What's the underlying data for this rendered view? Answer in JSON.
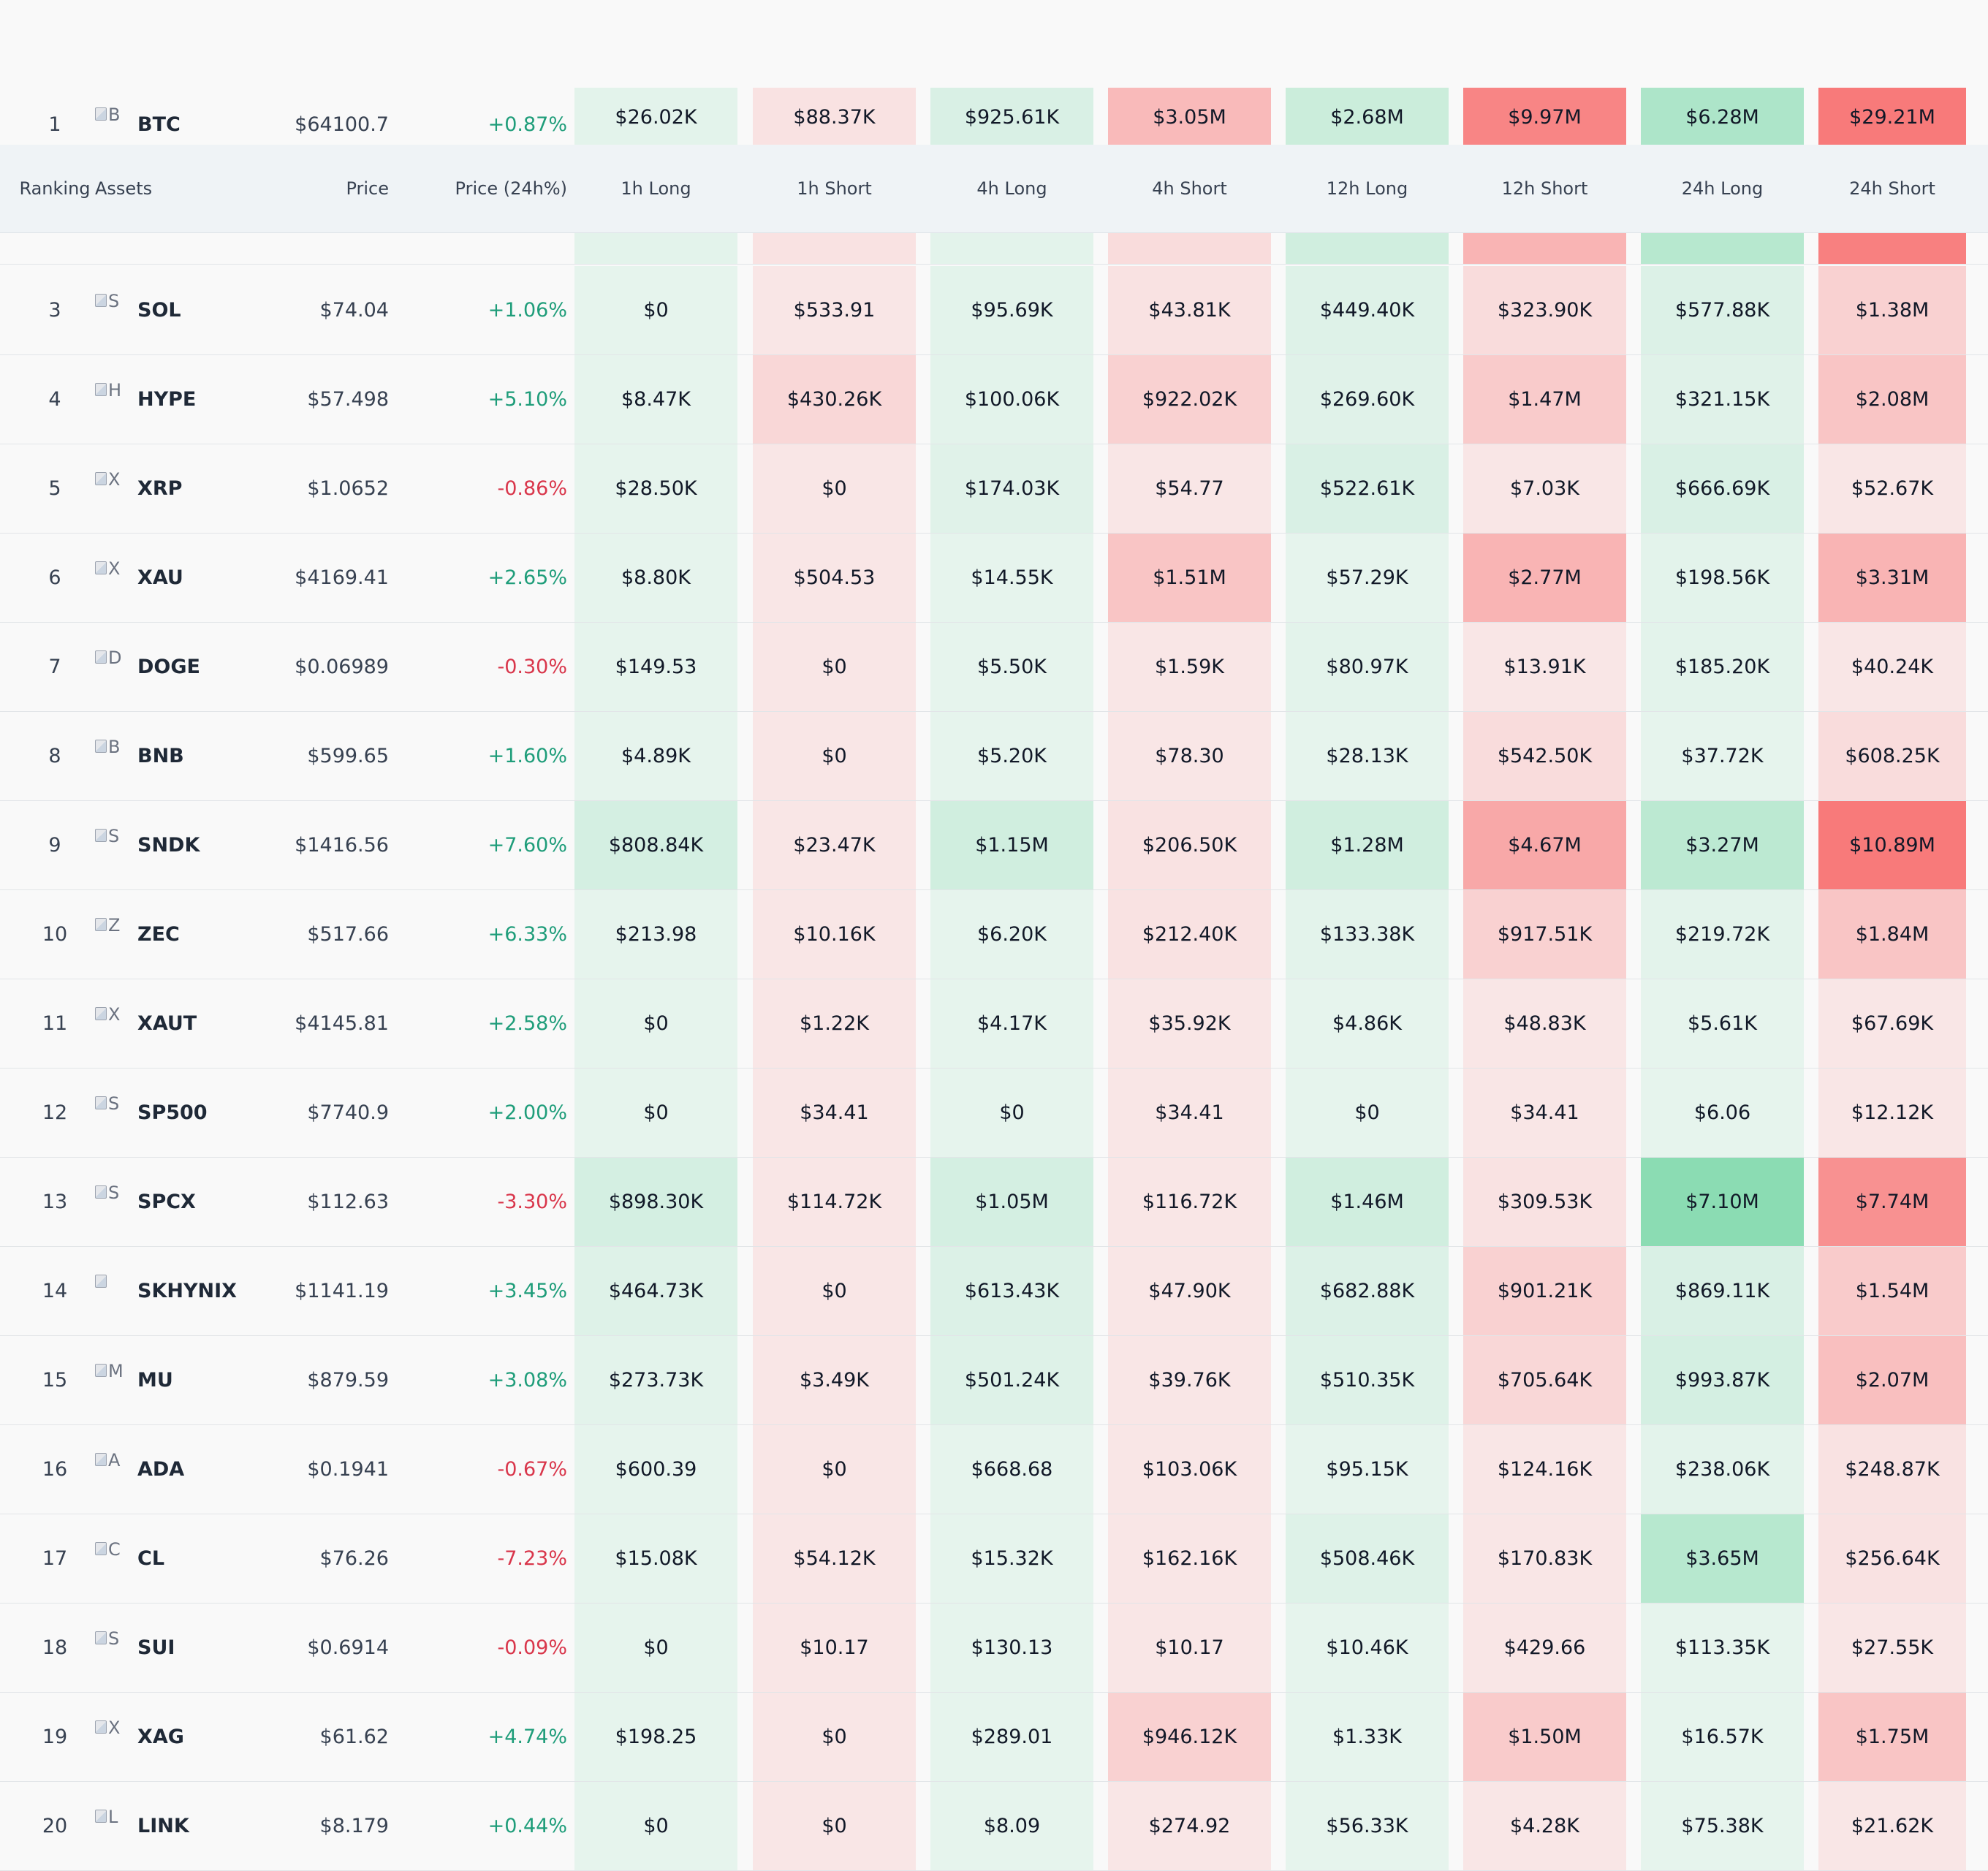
{
  "table": {
    "columns": [
      "Ranking",
      "Assets",
      "Price",
      "Price (24h%)",
      "1h Long",
      "1h Short",
      "4h Long",
      "4h Short",
      "12h Long",
      "12h Short",
      "24h Long",
      "24h Short"
    ],
    "color_scale": {
      "long_light": "#e8f4ee",
      "long_strong": "#86dbb0",
      "short_light": "#f9e8e8",
      "short_strong": "#f87474",
      "header_bg": "#eff3f6",
      "positive_text": "#1f9d7a",
      "negative_text": "#d9364b"
    },
    "rows": [
      {
        "rank": "1",
        "icon_alt": "B",
        "symbol": "BTC",
        "price": "$64100.7",
        "change": "+0.87%",
        "direction": "up",
        "values": [
          "$26.02K",
          "$88.37K",
          "$925.61K",
          "$3.05M",
          "$2.68M",
          "$9.97M",
          "$6.28M",
          "$29.21M"
        ],
        "intensity": [
          0.05,
          0.05,
          0.15,
          0.4,
          0.3,
          0.85,
          0.6,
          0.95
        ]
      },
      {
        "rank": "",
        "icon_alt": "",
        "symbol": "",
        "price": "",
        "change": "",
        "direction": "up",
        "values": [
          "",
          "",
          "",
          "",
          "",
          "",
          "",
          ""
        ],
        "intensity": [
          0.05,
          0.05,
          0.05,
          0.1,
          0.25,
          0.45,
          0.5,
          0.9
        ]
      },
      {
        "rank": "3",
        "icon_alt": "S",
        "symbol": "SOL",
        "price": "$74.04",
        "change": "+1.06%",
        "direction": "up",
        "values": [
          "$0",
          "$533.91",
          "$95.69K",
          "$43.81K",
          "$449.40K",
          "$323.90K",
          "$577.88K",
          "$1.38M"
        ],
        "intensity": [
          0.02,
          0.02,
          0.05,
          0.05,
          0.1,
          0.1,
          0.12,
          0.2
        ]
      },
      {
        "rank": "4",
        "icon_alt": "H",
        "symbol": "HYPE",
        "price": "$57.498",
        "change": "+5.10%",
        "direction": "up",
        "values": [
          "$8.47K",
          "$430.26K",
          "$100.06K",
          "$922.02K",
          "$269.60K",
          "$1.47M",
          "$321.15K",
          "$2.08M"
        ],
        "intensity": [
          0.02,
          0.15,
          0.05,
          0.2,
          0.08,
          0.25,
          0.08,
          0.3
        ]
      },
      {
        "rank": "5",
        "icon_alt": "X",
        "symbol": "XRP",
        "price": "$1.0652",
        "change": "-0.86%",
        "direction": "down",
        "values": [
          "$28.50K",
          "$0",
          "$174.03K",
          "$54.77",
          "$522.61K",
          "$7.03K",
          "$666.69K",
          "$52.67K"
        ],
        "intensity": [
          0.02,
          0.02,
          0.08,
          0.02,
          0.15,
          0.02,
          0.15,
          0.02
        ]
      },
      {
        "rank": "6",
        "icon_alt": "X",
        "symbol": "XAU",
        "price": "$4169.41",
        "change": "+2.65%",
        "direction": "up",
        "values": [
          "$8.80K",
          "$504.53",
          "$14.55K",
          "$1.51M",
          "$57.29K",
          "$2.77M",
          "$198.56K",
          "$3.31M"
        ],
        "intensity": [
          0.02,
          0.02,
          0.02,
          0.3,
          0.02,
          0.45,
          0.05,
          0.45
        ]
      },
      {
        "rank": "7",
        "icon_alt": "D",
        "symbol": "DOGE",
        "price": "$0.06989",
        "change": "-0.30%",
        "direction": "down",
        "values": [
          "$149.53",
          "$0",
          "$5.50K",
          "$1.59K",
          "$80.97K",
          "$13.91K",
          "$185.20K",
          "$40.24K"
        ],
        "intensity": [
          0.02,
          0.02,
          0.02,
          0.02,
          0.05,
          0.02,
          0.05,
          0.02
        ]
      },
      {
        "rank": "8",
        "icon_alt": "B",
        "symbol": "BNB",
        "price": "$599.65",
        "change": "+1.60%",
        "direction": "up",
        "values": [
          "$4.89K",
          "$0",
          "$5.20K",
          "$78.30",
          "$28.13K",
          "$542.50K",
          "$37.72K",
          "$608.25K"
        ],
        "intensity": [
          0.02,
          0.02,
          0.02,
          0.02,
          0.02,
          0.1,
          0.02,
          0.1
        ]
      },
      {
        "rank": "9",
        "icon_alt": "S",
        "symbol": "SNDK",
        "price": "$1416.56",
        "change": "+7.60%",
        "direction": "up",
        "values": [
          "$808.84K",
          "$23.47K",
          "$1.15M",
          "$206.50K",
          "$1.28M",
          "$4.67M",
          "$3.27M",
          "$10.89M"
        ],
        "intensity": [
          0.2,
          0.02,
          0.25,
          0.05,
          0.25,
          0.55,
          0.45,
          0.95
        ]
      },
      {
        "rank": "10",
        "icon_alt": "Z",
        "symbol": "ZEC",
        "price": "$517.66",
        "change": "+6.33%",
        "direction": "up",
        "values": [
          "$213.98",
          "$10.16K",
          "$6.20K",
          "$212.40K",
          "$133.38K",
          "$917.51K",
          "$219.72K",
          "$1.84M"
        ],
        "intensity": [
          0.02,
          0.02,
          0.02,
          0.05,
          0.05,
          0.2,
          0.05,
          0.3
        ]
      },
      {
        "rank": "11",
        "icon_alt": "X",
        "symbol": "XAUT",
        "price": "$4145.81",
        "change": "+2.58%",
        "direction": "up",
        "values": [
          "$0",
          "$1.22K",
          "$4.17K",
          "$35.92K",
          "$4.86K",
          "$48.83K",
          "$5.61K",
          "$67.69K"
        ],
        "intensity": [
          0.02,
          0.02,
          0.02,
          0.02,
          0.02,
          0.02,
          0.02,
          0.02
        ]
      },
      {
        "rank": "12",
        "icon_alt": "S",
        "symbol": "SP500",
        "price": "$7740.9",
        "change": "+2.00%",
        "direction": "up",
        "values": [
          "$0",
          "$34.41",
          "$0",
          "$34.41",
          "$0",
          "$34.41",
          "$6.06",
          "$12.12K"
        ],
        "intensity": [
          0.02,
          0.02,
          0.02,
          0.02,
          0.02,
          0.02,
          0.02,
          0.02
        ]
      },
      {
        "rank": "13",
        "icon_alt": "S",
        "symbol": "SPCX",
        "price": "$112.63",
        "change": "-3.30%",
        "direction": "down",
        "values": [
          "$898.30K",
          "$114.72K",
          "$1.05M",
          "$116.72K",
          "$1.46M",
          "$309.53K",
          "$7.10M",
          "$7.74M"
        ],
        "intensity": [
          0.2,
          0.02,
          0.2,
          0.02,
          0.25,
          0.05,
          0.95,
          0.75
        ]
      },
      {
        "rank": "14",
        "icon_alt": "",
        "symbol": "SKHYNIX",
        "price": "$1141.19",
        "change": "+3.45%",
        "direction": "up",
        "values": [
          "$464.73K",
          "$0",
          "$613.43K",
          "$47.90K",
          "$682.88K",
          "$901.21K",
          "$869.11K",
          "$1.54M"
        ],
        "intensity": [
          0.1,
          0.02,
          0.12,
          0.02,
          0.12,
          0.2,
          0.15,
          0.25
        ]
      },
      {
        "rank": "15",
        "icon_alt": "M",
        "symbol": "MU",
        "price": "$879.59",
        "change": "+3.08%",
        "direction": "up",
        "values": [
          "$273.73K",
          "$3.49K",
          "$501.24K",
          "$39.76K",
          "$510.35K",
          "$705.64K",
          "$993.87K",
          "$2.07M"
        ],
        "intensity": [
          0.05,
          0.02,
          0.1,
          0.02,
          0.1,
          0.15,
          0.2,
          0.35
        ]
      },
      {
        "rank": "16",
        "icon_alt": "A",
        "symbol": "ADA",
        "price": "$0.1941",
        "change": "-0.67%",
        "direction": "down",
        "values": [
          "$600.39",
          "$0",
          "$668.68",
          "$103.06K",
          "$95.15K",
          "$124.16K",
          "$238.06K",
          "$248.87K"
        ],
        "intensity": [
          0.02,
          0.02,
          0.02,
          0.02,
          0.02,
          0.02,
          0.05,
          0.05
        ]
      },
      {
        "rank": "17",
        "icon_alt": "C",
        "symbol": "CL",
        "price": "$76.26",
        "change": "-7.23%",
        "direction": "down",
        "values": [
          "$15.08K",
          "$54.12K",
          "$15.32K",
          "$162.16K",
          "$508.46K",
          "$170.83K",
          "$3.65M",
          "$256.64K"
        ],
        "intensity": [
          0.02,
          0.02,
          0.02,
          0.02,
          0.1,
          0.02,
          0.5,
          0.05
        ]
      },
      {
        "rank": "18",
        "icon_alt": "S",
        "symbol": "SUI",
        "price": "$0.6914",
        "change": "-0.09%",
        "direction": "down",
        "values": [
          "$0",
          "$10.17",
          "$130.13",
          "$10.17",
          "$10.46K",
          "$429.66",
          "$113.35K",
          "$27.55K"
        ],
        "intensity": [
          0.02,
          0.02,
          0.02,
          0.02,
          0.02,
          0.02,
          0.02,
          0.02
        ]
      },
      {
        "rank": "19",
        "icon_alt": "X",
        "symbol": "XAG",
        "price": "$61.62",
        "change": "+4.74%",
        "direction": "up",
        "values": [
          "$198.25",
          "$0",
          "$289.01",
          "$946.12K",
          "$1.33K",
          "$1.50M",
          "$16.57K",
          "$1.75M"
        ],
        "intensity": [
          0.02,
          0.02,
          0.02,
          0.2,
          0.02,
          0.25,
          0.02,
          0.3
        ]
      },
      {
        "rank": "20",
        "icon_alt": "L",
        "symbol": "LINK",
        "price": "$8.179",
        "change": "+0.44%",
        "direction": "up",
        "values": [
          "$0",
          "$0",
          "$8.09",
          "$274.92",
          "$56.33K",
          "$4.28K",
          "$75.38K",
          "$21.62K"
        ],
        "intensity": [
          0.02,
          0.02,
          0.02,
          0.02,
          0.02,
          0.02,
          0.02,
          0.02
        ]
      }
    ]
  }
}
